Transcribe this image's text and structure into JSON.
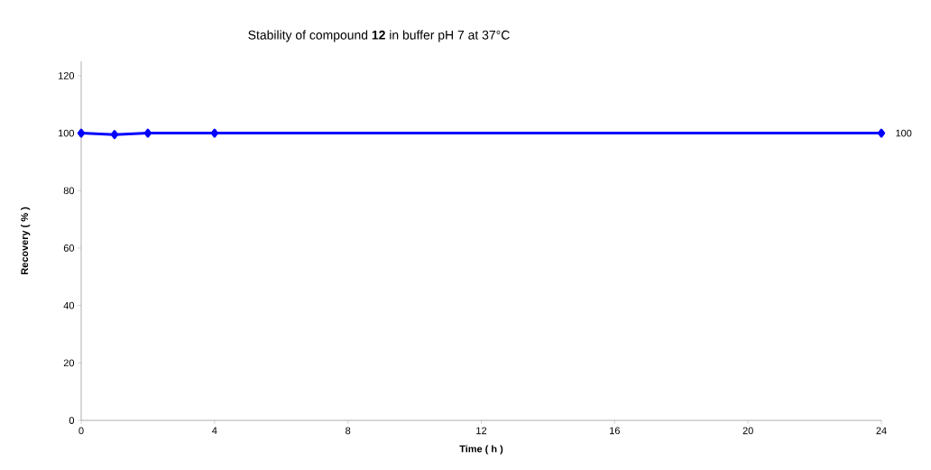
{
  "chart_data": {
    "type": "line",
    "title": "Stability of compound **12** in buffer pH 7 at 37°C",
    "xlabel": "Time ( h )",
    "ylabel": "Recovery ( % )",
    "x": [
      0,
      1,
      2,
      4,
      24
    ],
    "series": [
      {
        "color": "#0000ff",
        "values": [
          100,
          99.5,
          100,
          100,
          100
        ]
      }
    ],
    "xlim": [
      0,
      24
    ],
    "xticks": [
      0,
      4,
      8,
      12,
      16,
      20,
      24
    ],
    "ylim": [
      0,
      125
    ],
    "yticks": [
      0,
      20,
      40,
      60,
      80,
      100,
      120
    ],
    "marker": "diamond",
    "line_style": "solid",
    "grid": false,
    "annotations": [
      {
        "text": "100",
        "x": 24,
        "y": 100
      }
    ]
  }
}
